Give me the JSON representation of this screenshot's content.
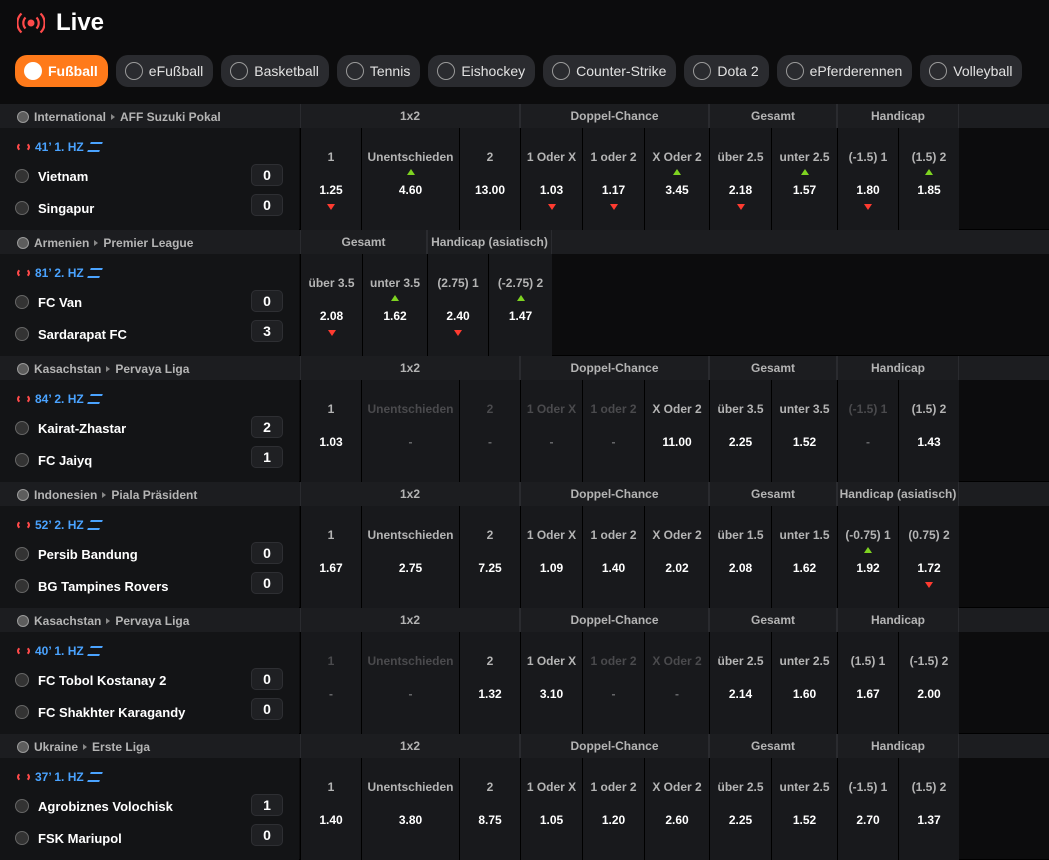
{
  "header": {
    "title": "Live"
  },
  "tabs": [
    {
      "label": "Fußball",
      "icon": "soccer-ball-icon",
      "active": true
    },
    {
      "label": "eFußball",
      "icon": "esoccer-icon"
    },
    {
      "label": "Basketball",
      "icon": "basketball-icon"
    },
    {
      "label": "Tennis",
      "icon": "tennis-icon"
    },
    {
      "label": "Eishockey",
      "icon": "ice-hockey-icon"
    },
    {
      "label": "Counter-Strike",
      "icon": "counter-strike-icon"
    },
    {
      "label": "Dota 2",
      "icon": "dota2-icon"
    },
    {
      "label": "ePferderennen",
      "icon": "horse-racing-icon"
    },
    {
      "label": "Volleyball",
      "icon": "volleyball-icon"
    }
  ],
  "colors": {
    "accent": "#ff7a1a",
    "time": "#4aa3ff",
    "up": "#7ed321",
    "down": "#ff3b30",
    "live": "#ff4a4a"
  },
  "events": [
    {
      "country": "International",
      "league": "AFF Suzuki Pokal",
      "time": "41’ 1. HZ",
      "home": {
        "name": "Vietnam",
        "score": "0",
        "logo": "vietnam-flag-icon"
      },
      "away": {
        "name": "Singapur",
        "score": "0",
        "logo": "singapore-flag-icon"
      },
      "groups": [
        {
          "name": "1x2",
          "markets": [
            {
              "label": "1",
              "odds": "1.25",
              "trend": "down"
            },
            {
              "label": "Unentschieden",
              "odds": "4.60",
              "trend": "up"
            },
            {
              "label": "2",
              "odds": "13.00",
              "trend": ""
            }
          ]
        },
        {
          "name": "Doppel-Chance",
          "markets": [
            {
              "label": "1 Oder X",
              "odds": "1.03",
              "trend": "down"
            },
            {
              "label": "1 oder 2",
              "odds": "1.17",
              "trend": "down"
            },
            {
              "label": "X Oder 2",
              "odds": "3.45",
              "trend": "up"
            }
          ]
        },
        {
          "name": "Gesamt",
          "markets": [
            {
              "label": "über 2.5",
              "odds": "2.18",
              "trend": "down"
            },
            {
              "label": "unter 2.5",
              "odds": "1.57",
              "trend": "up"
            }
          ]
        },
        {
          "name": "Handicap",
          "markets": [
            {
              "label": "(-1.5) 1",
              "odds": "1.80",
              "trend": "down"
            },
            {
              "label": "(1.5) 2",
              "odds": "1.85",
              "trend": "up"
            }
          ]
        }
      ]
    },
    {
      "country": "Armenien",
      "league": "Premier League",
      "time": "81’ 2. HZ",
      "home": {
        "name": "FC Van",
        "score": "0",
        "logo": "club-icon"
      },
      "away": {
        "name": "Sardarapat FC",
        "score": "3",
        "logo": "club-icon"
      },
      "groups": [
        {
          "name": "Gesamt",
          "markets": [
            {
              "label": "über 3.5",
              "odds": "2.08",
              "trend": "down"
            },
            {
              "label": "unter 3.5",
              "odds": "1.62",
              "trend": "up"
            }
          ]
        },
        {
          "name": "Handicap (asiatisch)",
          "markets": [
            {
              "label": "(2.75) 1",
              "odds": "2.40",
              "trend": "down"
            },
            {
              "label": "(-2.75) 2",
              "odds": "1.47",
              "trend": "up"
            }
          ]
        }
      ]
    },
    {
      "country": "Kasachstan",
      "league": "Pervaya Liga",
      "time": "84’ 2. HZ",
      "home": {
        "name": "Kairat-Zhastar",
        "score": "2",
        "logo": "club-icon"
      },
      "away": {
        "name": "FC Jaiyq",
        "score": "1",
        "logo": "club-icon"
      },
      "groups": [
        {
          "name": "1x2",
          "markets": [
            {
              "label": "1",
              "odds": "1.03",
              "trend": ""
            },
            {
              "label": "Unentschieden",
              "odds": "-",
              "trend": "",
              "disabled": true
            },
            {
              "label": "2",
              "odds": "-",
              "trend": "",
              "disabled": true
            }
          ]
        },
        {
          "name": "Doppel-Chance",
          "markets": [
            {
              "label": "1 Oder X",
              "odds": "-",
              "trend": "",
              "disabled": true
            },
            {
              "label": "1 oder 2",
              "odds": "-",
              "trend": "",
              "disabled": true
            },
            {
              "label": "X Oder 2",
              "odds": "11.00",
              "trend": ""
            }
          ]
        },
        {
          "name": "Gesamt",
          "markets": [
            {
              "label": "über 3.5",
              "odds": "2.25",
              "trend": ""
            },
            {
              "label": "unter 3.5",
              "odds": "1.52",
              "trend": ""
            }
          ]
        },
        {
          "name": "Handicap",
          "markets": [
            {
              "label": "(-1.5) 1",
              "odds": "-",
              "trend": "",
              "disabled": true
            },
            {
              "label": "(1.5) 2",
              "odds": "1.43",
              "trend": ""
            }
          ]
        }
      ]
    },
    {
      "country": "Indonesien",
      "league": "Piala Präsident",
      "time": "52’ 2. HZ",
      "home": {
        "name": "Persib Bandung",
        "score": "0",
        "logo": "club-icon"
      },
      "away": {
        "name": "BG Tampines Rovers",
        "score": "0",
        "logo": "club-icon"
      },
      "groups": [
        {
          "name": "1x2",
          "markets": [
            {
              "label": "1",
              "odds": "1.67",
              "trend": ""
            },
            {
              "label": "Unentschieden",
              "odds": "2.75",
              "trend": ""
            },
            {
              "label": "2",
              "odds": "7.25",
              "trend": ""
            }
          ]
        },
        {
          "name": "Doppel-Chance",
          "markets": [
            {
              "label": "1 Oder X",
              "odds": "1.09",
              "trend": ""
            },
            {
              "label": "1 oder 2",
              "odds": "1.40",
              "trend": ""
            },
            {
              "label": "X Oder 2",
              "odds": "2.02",
              "trend": ""
            }
          ]
        },
        {
          "name": "Gesamt",
          "markets": [
            {
              "label": "über 1.5",
              "odds": "2.08",
              "trend": ""
            },
            {
              "label": "unter 1.5",
              "odds": "1.62",
              "trend": ""
            }
          ]
        },
        {
          "name": "Handicap (asiatisch)",
          "markets": [
            {
              "label": "(-0.75) 1",
              "odds": "1.92",
              "trend": "up"
            },
            {
              "label": "(0.75) 2",
              "odds": "1.72",
              "trend": "down"
            }
          ]
        }
      ]
    },
    {
      "country": "Kasachstan",
      "league": "Pervaya Liga",
      "time": "40’ 1. HZ",
      "home": {
        "name": "FC Tobol Kostanay 2",
        "score": "0",
        "logo": "club-icon"
      },
      "away": {
        "name": "FC Shakhter Karagandy",
        "score": "0",
        "logo": "club-icon"
      },
      "groups": [
        {
          "name": "1x2",
          "markets": [
            {
              "label": "1",
              "odds": "-",
              "trend": "",
              "disabled": true
            },
            {
              "label": "Unentschieden",
              "odds": "-",
              "trend": "",
              "disabled": true
            },
            {
              "label": "2",
              "odds": "1.32",
              "trend": ""
            }
          ]
        },
        {
          "name": "Doppel-Chance",
          "markets": [
            {
              "label": "1 Oder X",
              "odds": "3.10",
              "trend": ""
            },
            {
              "label": "1 oder 2",
              "odds": "-",
              "trend": "",
              "disabled": true
            },
            {
              "label": "X Oder 2",
              "odds": "-",
              "trend": "",
              "disabled": true
            }
          ]
        },
        {
          "name": "Gesamt",
          "markets": [
            {
              "label": "über 2.5",
              "odds": "2.14",
              "trend": ""
            },
            {
              "label": "unter 2.5",
              "odds": "1.60",
              "trend": ""
            }
          ]
        },
        {
          "name": "Handicap",
          "markets": [
            {
              "label": "(1.5) 1",
              "odds": "1.67",
              "trend": ""
            },
            {
              "label": "(-1.5) 2",
              "odds": "2.00",
              "trend": ""
            }
          ]
        }
      ]
    },
    {
      "country": "Ukraine",
      "league": "Erste Liga",
      "time": "37’ 1. HZ",
      "home": {
        "name": "Agrobiznes Volochisk",
        "score": "1",
        "logo": "club-icon"
      },
      "away": {
        "name": "FSK Mariupol",
        "score": "0",
        "logo": "club-icon"
      },
      "groups": [
        {
          "name": "1x2",
          "markets": [
            {
              "label": "1",
              "odds": "1.40",
              "trend": ""
            },
            {
              "label": "Unentschieden",
              "odds": "3.80",
              "trend": ""
            },
            {
              "label": "2",
              "odds": "8.75",
              "trend": ""
            }
          ]
        },
        {
          "name": "Doppel-Chance",
          "markets": [
            {
              "label": "1 Oder X",
              "odds": "1.05",
              "trend": ""
            },
            {
              "label": "1 oder 2",
              "odds": "1.20",
              "trend": ""
            },
            {
              "label": "X Oder 2",
              "odds": "2.60",
              "trend": ""
            }
          ]
        },
        {
          "name": "Gesamt",
          "markets": [
            {
              "label": "über 2.5",
              "odds": "2.25",
              "trend": ""
            },
            {
              "label": "unter 2.5",
              "odds": "1.52",
              "trend": ""
            }
          ]
        },
        {
          "name": "Handicap",
          "markets": [
            {
              "label": "(-1.5) 1",
              "odds": "2.70",
              "trend": ""
            },
            {
              "label": "(1.5) 2",
              "odds": "1.37",
              "trend": ""
            }
          ]
        }
      ]
    }
  ]
}
